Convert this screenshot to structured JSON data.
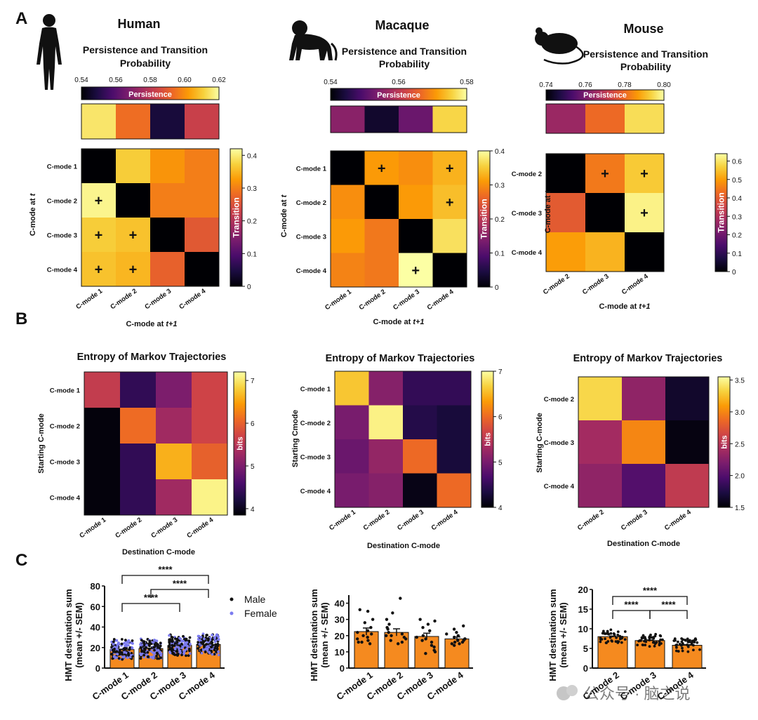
{
  "panel_labels": {
    "a": "A",
    "b": "B",
    "c": "C"
  },
  "persistence_label": "Persistence",
  "transition_label": "Transition",
  "bits_label": "bits",
  "plus_symbol": "+",
  "watermark": "公众号 · 脑之说",
  "colormap": [
    "#000004",
    "#1b0c41",
    "#4a0c6b",
    "#781c6d",
    "#a52c60",
    "#cf4446",
    "#ed6925",
    "#fb9b06",
    "#f7d13d",
    "#fcffa4"
  ],
  "bar_color": "#f58a1f",
  "chart_data": [
    {
      "type": "heatmap",
      "id": "human_transition",
      "species": "Human",
      "title": "Persistence and Transition Probability",
      "row_labels": [
        "C-mode 1",
        "C-mode 2",
        "C-mode 3",
        "C-mode 4"
      ],
      "col_labels": [
        "C-mode 1",
        "C-mode 2",
        "C-mode 3",
        "C-mode 4"
      ],
      "xlabel_main": "C-mode at ",
      "xlabel_italic": "t+1",
      "ylabel_main": "C-mode at ",
      "ylabel_italic": "t",
      "persistence": [
        0.615,
        0.594,
        0.548,
        0.583
      ],
      "persistence_range": [
        0.54,
        0.62
      ],
      "persistence_ticks": [
        "0.54",
        "0.56",
        "0.58",
        "0.60",
        "0.62"
      ],
      "matrix": [
        [
          0.0,
          0.37,
          0.32,
          0.3
        ],
        [
          0.41,
          0.0,
          0.3,
          0.3
        ],
        [
          0.37,
          0.36,
          0.0,
          0.26
        ],
        [
          0.36,
          0.35,
          0.27,
          0.0
        ]
      ],
      "matrix_range": [
        0,
        0.42
      ],
      "colorbar_ticks": [
        0,
        0.1,
        0.2,
        0.3,
        0.4
      ],
      "colorbar_tick_labels": [
        "0",
        "0.1",
        "0.2",
        "0.3",
        "0.4"
      ],
      "plus_cells": [
        [
          1,
          0
        ],
        [
          2,
          0
        ],
        [
          2,
          1
        ],
        [
          3,
          0
        ],
        [
          3,
          1
        ]
      ]
    },
    {
      "type": "heatmap",
      "id": "macaque_transition",
      "species": "Macaque",
      "title": "Persistence and Transition Probability",
      "row_labels": [
        "C-mode 1",
        "C-mode 2",
        "C-mode 3",
        "C-mode 4"
      ],
      "col_labels": [
        "C-mode 1",
        "C-mode 2",
        "C-mode 3",
        "C-mode 4"
      ],
      "xlabel_main": "C-mode at ",
      "xlabel_italic": "t+1",
      "ylabel_main": "C-mode at ",
      "ylabel_italic": "t",
      "persistence": [
        0.555,
        0.543,
        0.552,
        0.576
      ],
      "persistence_range": [
        0.54,
        0.58
      ],
      "persistence_ticks": [
        "0.54",
        "0.56",
        "0.58"
      ],
      "matrix": [
        [
          0.0,
          0.31,
          0.3,
          0.33
        ],
        [
          0.3,
          0.0,
          0.31,
          0.34
        ],
        [
          0.31,
          0.28,
          0.0,
          0.37
        ],
        [
          0.29,
          0.28,
          0.4,
          0.0
        ]
      ],
      "matrix_range": [
        0,
        0.4
      ],
      "colorbar_ticks": [
        0,
        0.1,
        0.2,
        0.3,
        0.4
      ],
      "colorbar_tick_labels": [
        "0",
        "0.1",
        "0.2",
        "0.3",
        "0.4"
      ],
      "plus_cells": [
        [
          0,
          1
        ],
        [
          0,
          3
        ],
        [
          1,
          3
        ],
        [
          3,
          2
        ]
      ]
    },
    {
      "type": "heatmap",
      "id": "mouse_transition",
      "species": "Mouse",
      "title": "Persistence and Transition Probability",
      "row_labels": [
        "C-mode 2",
        "C-mode 3",
        "C-mode 4"
      ],
      "col_labels": [
        "C-mode 2",
        "C-mode 3",
        "C-mode 4"
      ],
      "xlabel_main": "C-mode at ",
      "xlabel_italic": "t+1",
      "ylabel_main": "C-mode at ",
      "ylabel_italic": "t",
      "persistence": [
        0.765,
        0.78,
        0.795
      ],
      "persistence_range": [
        0.74,
        0.8
      ],
      "persistence_ticks": [
        "0.74",
        "0.76",
        "0.78",
        "0.80"
      ],
      "matrix": [
        [
          0.0,
          0.45,
          0.56
        ],
        [
          0.4,
          0.0,
          0.62
        ],
        [
          0.5,
          0.53,
          0.0
        ]
      ],
      "matrix_range": [
        0,
        0.64
      ],
      "colorbar_ticks": [
        0,
        0.1,
        0.2,
        0.3,
        0.4,
        0.5,
        0.6
      ],
      "colorbar_tick_labels": [
        "0",
        "0.1",
        "0.2",
        "0.3",
        "0.4",
        "0.5",
        "0.6"
      ],
      "plus_cells": [
        [
          0,
          1
        ],
        [
          0,
          2
        ],
        [
          1,
          2
        ]
      ]
    },
    {
      "type": "heatmap",
      "id": "human_entropy",
      "title": "Entropy of Markov Trajectories",
      "row_labels": [
        "C-mode 1",
        "C-mode 2",
        "C-mode 3",
        "C-mode 4"
      ],
      "col_labels": [
        "C-mode 1",
        "C-mode 2",
        "C-mode 3",
        "C-mode 4"
      ],
      "xlabel": "Destination C-mode",
      "ylabel": "Starting C-mode",
      "matrix": [
        [
          5.6,
          4.4,
          5.0,
          5.7
        ],
        [
          3.9,
          6.1,
          5.3,
          5.7
        ],
        [
          3.9,
          4.4,
          6.6,
          6.0
        ],
        [
          3.9,
          4.4,
          5.3,
          7.1
        ]
      ],
      "matrix_range": [
        3.85,
        7.2
      ],
      "colorbar_ticks": [
        4,
        5,
        6,
        7
      ],
      "colorbar_tick_labels": [
        "4",
        "5",
        "6",
        "7"
      ]
    },
    {
      "type": "heatmap",
      "id": "macaque_entropy",
      "title": "Entropy of Markov Trajectories",
      "row_labels": [
        "C-mode 1",
        "C-mode 2",
        "C-mode 3",
        "C-mode 4"
      ],
      "col_labels": [
        "C-mode 1",
        "C-mode 2",
        "C-mode 3",
        "C-mode 4"
      ],
      "xlabel": "Destination C-mode",
      "ylabel": "Starting Cmode",
      "matrix": [
        [
          6.6,
          5.1,
          4.5,
          4.5
        ],
        [
          5.0,
          6.9,
          4.4,
          4.3
        ],
        [
          4.9,
          5.2,
          6.0,
          4.3
        ],
        [
          5.0,
          5.1,
          4.1,
          6.0
        ]
      ],
      "matrix_range": [
        4,
        7
      ],
      "colorbar_ticks": [
        4,
        5,
        6,
        7
      ],
      "colorbar_tick_labels": [
        "4",
        "5",
        "6",
        "7"
      ]
    },
    {
      "type": "heatmap",
      "id": "mouse_entropy",
      "title": "Entropy of Markov Trajectories",
      "row_labels": [
        "C-mode 2",
        "C-mode 3",
        "C-mode 4"
      ],
      "col_labels": [
        "C-mode 2",
        "C-mode 3",
        "C-mode 4"
      ],
      "xlabel": "Destination C-mode",
      "ylabel": "Starting C-mode",
      "matrix": [
        [
          3.35,
          2.3,
          1.65
        ],
        [
          2.4,
          3.0,
          1.55
        ],
        [
          2.3,
          2.0,
          2.55
        ]
      ],
      "matrix_range": [
        1.5,
        3.55
      ],
      "colorbar_ticks": [
        1.5,
        2.0,
        2.5,
        3.0,
        3.5
      ],
      "colorbar_tick_labels": [
        "1.5",
        "2.0",
        "2.5",
        "3.0",
        "3.5"
      ]
    },
    {
      "type": "bar",
      "id": "human_hmt",
      "categories": [
        "C-mode 1",
        "C-mode 2",
        "C-mode 3",
        "C-mode 4"
      ],
      "values": [
        18,
        19,
        22,
        23
      ],
      "sem": [
        0.4,
        0.4,
        0.5,
        0.5
      ],
      "ylabel": "HMT destination sum",
      "ylabel2": "(mean +/- SEM)",
      "ylim": [
        0,
        80
      ],
      "yticks": [
        0,
        20,
        40,
        60,
        80
      ],
      "legend": [
        {
          "name": "Male",
          "color": "#111111"
        },
        {
          "name": "Female",
          "color": "#7b7bf0"
        }
      ],
      "points_note": "dense individual points 10-30 per bar",
      "significance": [
        {
          "from": 0,
          "to": 3,
          "label": "****"
        },
        {
          "from": 1,
          "to": 3,
          "label": "****"
        },
        {
          "from": 0,
          "to": 2,
          "label": "****"
        }
      ]
    },
    {
      "type": "bar",
      "id": "macaque_hmt",
      "categories": [
        "C-mode 1",
        "C-mode 2",
        "C-mode 3",
        "C-mode 4"
      ],
      "values": [
        22.5,
        22,
        19.5,
        18
      ],
      "sem": [
        2.2,
        2.2,
        2.0,
        1.2
      ],
      "ylabel": "HMT destination sum",
      "ylabel2": "(mean +/- SEM)",
      "ylim": [
        0,
        45
      ],
      "yticks": [
        0,
        10,
        20,
        30,
        40
      ],
      "points": [
        [
          36,
          35,
          30,
          28,
          25,
          23,
          22,
          21,
          20,
          19,
          18,
          17,
          16,
          16,
          15
        ],
        [
          43,
          34,
          30,
          27,
          25,
          24,
          22,
          21,
          20,
          20,
          19,
          18,
          17,
          16,
          15
        ],
        [
          30,
          29,
          27,
          25,
          23,
          20,
          19,
          18,
          17,
          16,
          14,
          13,
          11,
          10,
          9
        ],
        [
          26,
          24,
          22,
          21,
          20,
          19,
          18,
          18,
          17,
          17,
          16,
          16,
          15,
          15,
          14
        ]
      ]
    },
    {
      "type": "bar",
      "id": "mouse_hmt",
      "categories": [
        "C-mode 2",
        "C-mode 3",
        "C-mode 4"
      ],
      "values": [
        8.0,
        7.0,
        5.8
      ],
      "sem": [
        0.15,
        0.15,
        0.15
      ],
      "ylabel": "HMT destination sum",
      "ylabel2": "(mean +/- SEM)",
      "ylim": [
        0,
        20
      ],
      "yticks": [
        0,
        5,
        10,
        15,
        20
      ],
      "points_note": "~40 individual points per bar",
      "significance": [
        {
          "from": 0,
          "to": 2,
          "label": "****"
        },
        {
          "from": 0,
          "to": 1,
          "label": "****"
        },
        {
          "from": 1,
          "to": 2,
          "label": "****"
        }
      ]
    }
  ]
}
